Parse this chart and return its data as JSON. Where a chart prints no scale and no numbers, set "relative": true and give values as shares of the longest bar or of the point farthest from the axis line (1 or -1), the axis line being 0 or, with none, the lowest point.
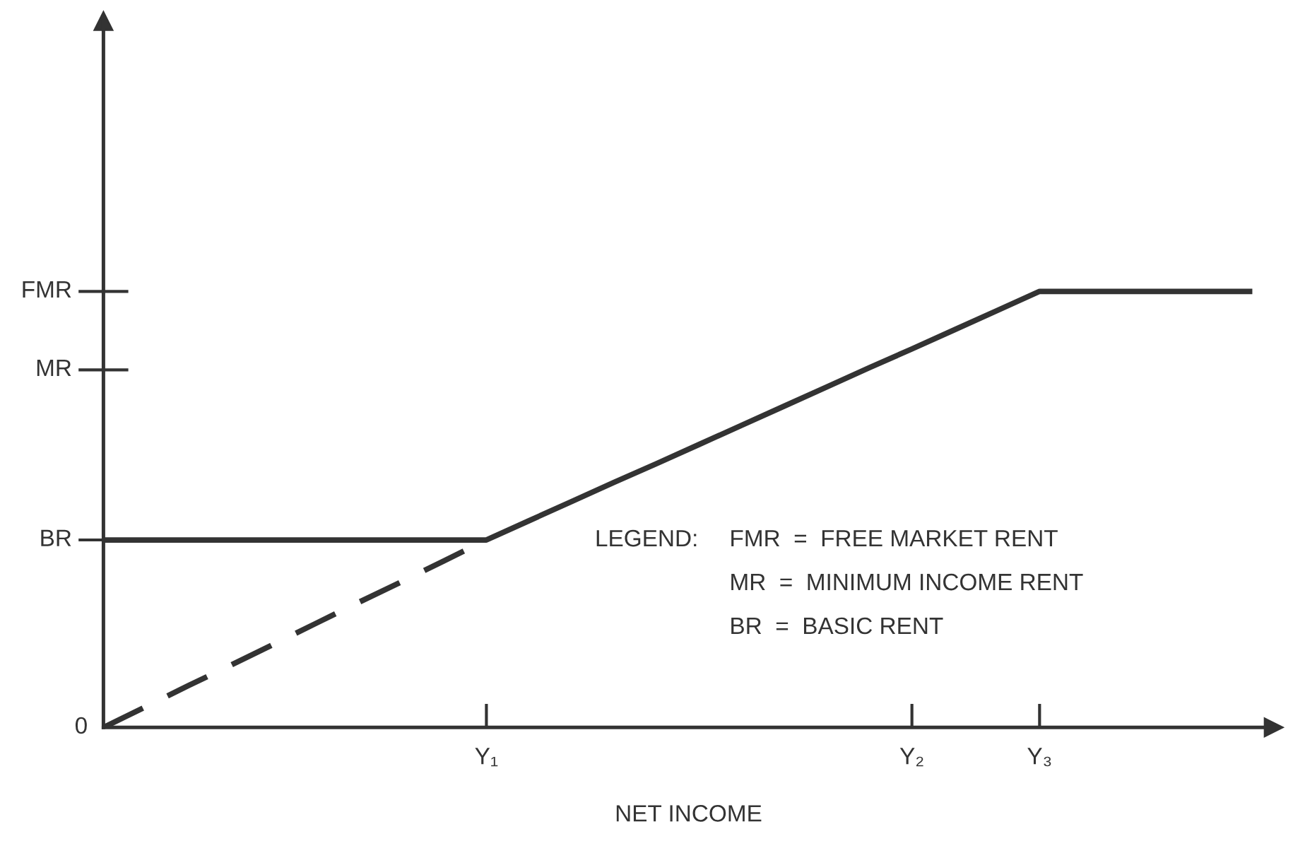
{
  "chart_data": {
    "type": "line",
    "xlabel": "NET INCOME",
    "categories": [
      null,
      null,
      null,
      null,
      null,
      null,
      null,
      null,
      null,
      "Y₁",
      null,
      null,
      null,
      null,
      null,
      null,
      null,
      null,
      null,
      "Y₂",
      null,
      null,
      "Y₃",
      null,
      null,
      null,
      null,
      null
    ],
    "series": [
      {
        "color": "#333333",
        "values": [
          0.43,
          0.43,
          0.43,
          0.43,
          0.43,
          0.43,
          0.43,
          0.43,
          0.43,
          0.43,
          0.474,
          0.518,
          0.562,
          0.605,
          0.649,
          0.693,
          0.737,
          0.781,
          0.825,
          0.868,
          0.912,
          0.956,
          1,
          1,
          1,
          1,
          1,
          1
        ],
        "line_style": "solid"
      },
      {
        "color": "#333333",
        "values": [
          0,
          0.048,
          0.096,
          0.143,
          0.191,
          0.239,
          0.287,
          0.334,
          0.382,
          0.43,
          null,
          null,
          null,
          null,
          null,
          null,
          null,
          null,
          null,
          null,
          null,
          null,
          null,
          null,
          null,
          null,
          null,
          null
        ],
        "line_style": "dashed"
      }
    ],
    "ref_lines": [
      {
        "axis": "y",
        "value": 0.43,
        "label": "BR"
      },
      {
        "axis": "y",
        "value": 0.82,
        "label": "MR"
      },
      {
        "axis": "y",
        "value": 1,
        "label": "FMR"
      }
    ],
    "annotations": [
      "0",
      "LEGEND:",
      "FMR  =  FREE MARKET RENT",
      "MR  =  MINIMUM INCOME RENT",
      "BR  =  BASIC RENT"
    ],
    "relative": true
  }
}
